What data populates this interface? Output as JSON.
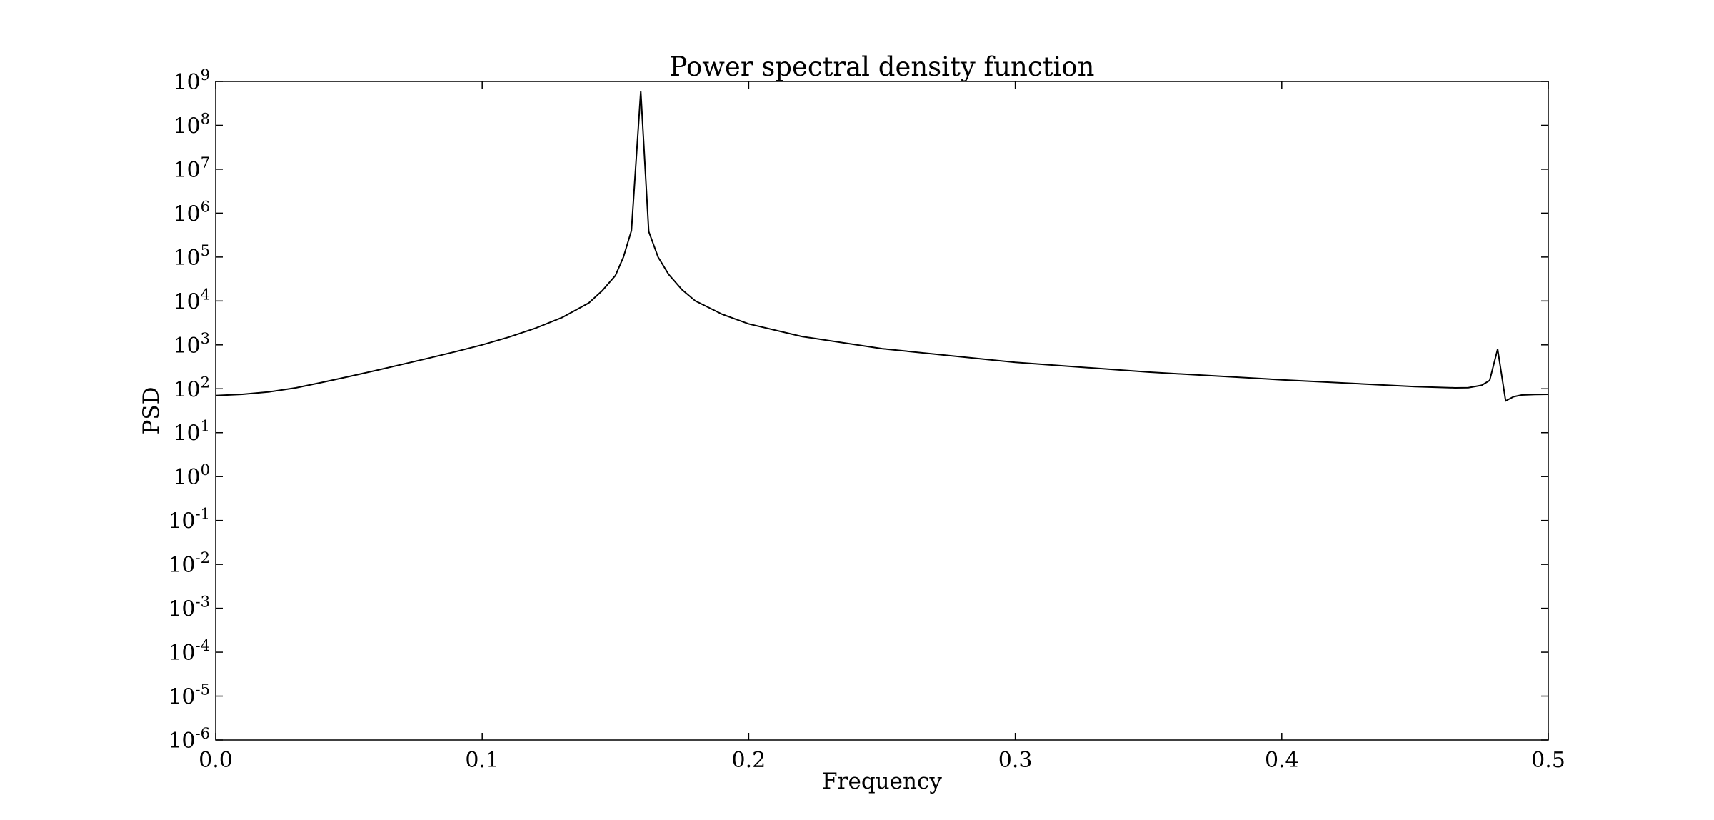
{
  "chart_data": {
    "type": "line",
    "title": "Power spectral density function",
    "xlabel": "Frequency",
    "ylabel": "PSD",
    "xlim": [
      0.0,
      0.5
    ],
    "ylim": [
      1e-06,
      1000000000.0
    ],
    "yscale": "log",
    "grid": false,
    "x_ticks": [
      "0.0",
      "0.1",
      "0.2",
      "0.3",
      "0.4",
      "0.5"
    ],
    "y_tick_base": "10",
    "y_tick_exponents": [
      "9",
      "8",
      "7",
      "6",
      "5",
      "4",
      "3",
      "2",
      "1",
      "0",
      "-1",
      "-2",
      "-3",
      "-4",
      "-5",
      "-6"
    ],
    "series": [
      {
        "color": "#000000",
        "x": [
          0.0,
          0.01,
          0.02,
          0.03,
          0.04,
          0.05,
          0.06,
          0.07,
          0.08,
          0.09,
          0.1,
          0.11,
          0.12,
          0.13,
          0.14,
          0.145,
          0.15,
          0.153,
          0.156,
          0.1595,
          0.1625,
          0.166,
          0.17,
          0.175,
          0.18,
          0.19,
          0.2,
          0.22,
          0.25,
          0.3,
          0.35,
          0.4,
          0.45,
          0.465,
          0.47,
          0.475,
          0.478,
          0.481,
          0.484,
          0.487,
          0.49,
          0.495,
          0.5
        ],
        "y": [
          70,
          75,
          85,
          105,
          140,
          190,
          260,
          360,
          500,
          700,
          1000,
          1500,
          2400,
          4200,
          9000,
          17000,
          38000,
          100000,
          400000,
          600000000,
          380000,
          100000,
          40000,
          18000,
          10000,
          5000,
          3000,
          1550,
          820,
          400,
          240,
          160,
          112,
          105,
          106,
          120,
          155,
          800,
          53,
          66,
          72,
          74,
          75
        ]
      }
    ]
  }
}
